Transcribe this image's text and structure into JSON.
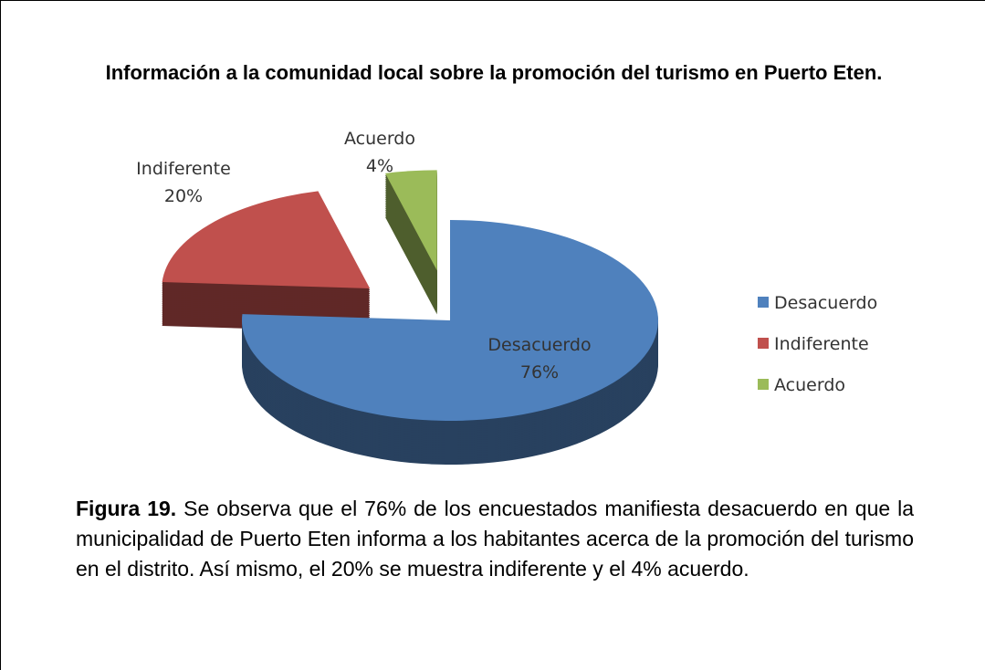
{
  "chart_data": {
    "type": "pie",
    "title": "Información a la comunidad local sobre la promoción del turismo en Puerto Eten.",
    "categories": [
      "Desacuerdo",
      "Indiferente",
      "Acuerdo"
    ],
    "values": [
      76,
      20,
      4
    ],
    "value_labels": [
      "76%",
      "20%",
      "4%"
    ],
    "colors": [
      "#4f81bd",
      "#c0504d",
      "#9bbb59"
    ],
    "legend": "right"
  },
  "caption": {
    "label": "Figura 19.",
    "text": "Se observa que el 76% de los encuestados manifiesta desacuerdo en que la municipalidad de Puerto Eten informa a los habitantes acerca de la promoción del turismo en el distrito. Así mismo, el 20% se muestra indiferente y el 4% acuerdo."
  }
}
